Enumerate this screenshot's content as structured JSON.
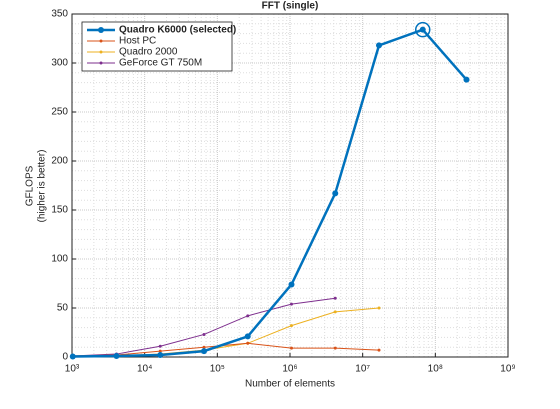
{
  "chart_data": {
    "type": "line",
    "title": "FFT (single)",
    "xlabel": "Number of elements",
    "ylabel": [
      "GFLOPS",
      "(higher is better)"
    ],
    "x": [
      1024,
      4096,
      16384,
      65536,
      262144,
      1048576,
      4194304,
      16777216,
      67108864,
      268435456
    ],
    "xscale": "log",
    "xlim": [
      1000,
      1000000000
    ],
    "xticks": [
      {
        "value": 1000,
        "label": "10³"
      },
      {
        "value": 10000,
        "label": "10⁴"
      },
      {
        "value": 100000,
        "label": "10⁵"
      },
      {
        "value": 1000000,
        "label": "10⁶"
      },
      {
        "value": 10000000,
        "label": "10⁷"
      },
      {
        "value": 100000000,
        "label": "10⁸"
      },
      {
        "value": 1000000000,
        "label": "10⁹"
      }
    ],
    "ylim": [
      0,
      350
    ],
    "yticks": [
      0,
      50,
      100,
      150,
      200,
      250,
      300,
      350
    ],
    "grid": true,
    "legend": "northwest",
    "series": [
      {
        "name": "Quadro K6000 (selected)",
        "color": "#0072bd",
        "selected": true,
        "values": [
          0.5,
          1,
          2,
          6,
          21,
          74,
          167,
          318,
          334,
          283
        ]
      },
      {
        "name": "Host PC",
        "color": "#d95319",
        "values": [
          1,
          2,
          6,
          10,
          14,
          9,
          9,
          7,
          null,
          null
        ]
      },
      {
        "name": "Quadro 2000",
        "color": "#edb120",
        "values": [
          0.5,
          1,
          3,
          7,
          14,
          32,
          46,
          50,
          null,
          null
        ]
      },
      {
        "name": "GeForce GT 750M",
        "color": "#7e2f8e",
        "values": [
          1,
          3,
          11,
          23,
          42,
          54,
          60,
          null,
          null,
          null
        ]
      }
    ]
  }
}
